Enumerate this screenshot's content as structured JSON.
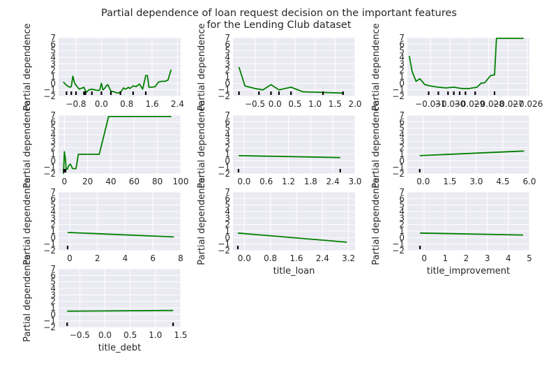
{
  "chart_data": {
    "title": [
      "Partial dependence of loan request decision on the important features",
      "for the Lending Club dataset"
    ],
    "line_color": "#008000",
    "background_color": "#eaeaf2",
    "panels": [
      {
        "type": "line",
        "xlabel": "",
        "ylabel": "Partial dependence",
        "xlim": [
          -1.35,
          2.5
        ],
        "ylim": [
          -2,
          7
        ],
        "xticks": [
          -0.8,
          0.0,
          0.8,
          1.6,
          2.4
        ],
        "xtick_labels": [
          "−0.8",
          "0.0",
          "0.8",
          "1.6",
          "2.4"
        ],
        "yticks": [
          -2,
          -1,
          0,
          1,
          2,
          3,
          4,
          5,
          6,
          7
        ],
        "ytick_labels": [
          "−2",
          "−1",
          "0",
          "1",
          "2",
          "3",
          "4",
          "5",
          "6",
          "7"
        ],
        "x": [
          -1.2,
          -1.1,
          -1.0,
          -0.95,
          -0.9,
          -0.85,
          -0.8,
          -0.7,
          -0.6,
          -0.55,
          -0.5,
          -0.45,
          -0.4,
          -0.3,
          -0.2,
          -0.1,
          -0.05,
          0.0,
          0.05,
          0.1,
          0.15,
          0.2,
          0.3,
          0.4,
          0.5,
          0.6,
          0.7,
          0.75,
          0.8,
          0.85,
          0.9,
          1.0,
          1.1,
          1.2,
          1.3,
          1.4,
          1.45,
          1.5,
          1.55,
          1.6,
          1.7,
          1.8,
          1.9,
          2.0,
          2.1,
          2.2
        ],
        "y": [
          0.2,
          -0.3,
          -0.6,
          -0.5,
          1.1,
          0.1,
          -0.3,
          -0.9,
          -0.7,
          -0.6,
          -1.2,
          -1.3,
          -1.0,
          -0.9,
          -1.0,
          -1.1,
          -1.0,
          0.0,
          -1.0,
          -0.8,
          -0.4,
          -0.2,
          -1.2,
          -1.3,
          -1.5,
          -1.4,
          -0.7,
          -0.9,
          -0.8,
          -0.6,
          -0.8,
          -0.4,
          -0.5,
          -0.1,
          -0.9,
          1.2,
          1.2,
          -0.6,
          -0.6,
          -0.6,
          -0.5,
          0.2,
          0.3,
          0.3,
          0.5,
          2.1
        ],
        "rug": [
          -1.1,
          -0.95,
          -0.8,
          -0.55,
          -0.5,
          -0.3,
          0.0,
          0.3,
          0.6,
          1.0,
          1.4
        ]
      },
      {
        "type": "line",
        "xlabel": "",
        "ylabel": "Partial dependence",
        "xlim": [
          -1.05,
          2.0
        ],
        "ylim": [
          -2,
          7
        ],
        "xticks": [
          -0.5,
          0.0,
          0.5,
          1.0,
          1.5,
          2.0
        ],
        "xtick_labels": [
          "−0.5",
          "0.0",
          "0.5",
          "1.0",
          "1.5",
          "2.0"
        ],
        "yticks": [
          -2,
          -1,
          0,
          1,
          2,
          3,
          4,
          5,
          6,
          7
        ],
        "ytick_labels": [
          "−2",
          "−1",
          "0",
          "1",
          "2",
          "3",
          "4",
          "5",
          "6",
          "7"
        ],
        "x": [
          -0.9,
          -0.75,
          -0.5,
          -0.3,
          -0.1,
          0.1,
          0.4,
          0.7,
          1.2,
          1.7
        ],
        "y": [
          2.5,
          -0.4,
          -0.8,
          -1.0,
          -0.2,
          -1.0,
          -0.6,
          -1.3,
          -1.4,
          -1.5
        ],
        "rug": [
          -0.9,
          -0.4,
          -0.1,
          0.1,
          0.4,
          1.2,
          1.7
        ]
      },
      {
        "type": "line",
        "xlabel": "",
        "ylabel": "Partial dependence",
        "xlim": [
          -0.0322,
          -0.0259
        ],
        "ylim": [
          -2,
          7
        ],
        "xticks": [
          -0.031,
          -0.03,
          -0.029,
          -0.028,
          -0.027,
          -0.026
        ],
        "xtick_labels": [
          "−0.031",
          "−0.030",
          "−0.029",
          "−0.028",
          "−0.027",
          "−0.026"
        ],
        "yticks": [
          -2,
          -1,
          0,
          1,
          2,
          3,
          4,
          5,
          6,
          7
        ],
        "ytick_labels": [
          "−2",
          "−1",
          "0",
          "1",
          "2",
          "3",
          "4",
          "5",
          "6",
          "7"
        ],
        "x": [
          -0.0321,
          -0.03195,
          -0.03175,
          -0.03155,
          -0.0313,
          -0.031,
          -0.0306,
          -0.0302,
          -0.0298,
          -0.0294,
          -0.029,
          -0.0286,
          -0.0284,
          -0.0282,
          -0.0279,
          -0.0277,
          -0.0276,
          -0.0274,
          -0.027,
          -0.0266,
          -0.0262
        ],
        "y": [
          4.2,
          1.8,
          0.3,
          0.7,
          -0.2,
          -0.4,
          -0.6,
          -0.7,
          -0.6,
          -0.8,
          -0.8,
          -0.6,
          0.0,
          0.1,
          1.2,
          1.3,
          6.9,
          6.9,
          6.9,
          6.9,
          6.9
        ],
        "rug": [
          -0.0311,
          -0.0306,
          -0.0301,
          -0.0298,
          -0.0295,
          -0.0292,
          -0.0287,
          -0.0277
        ]
      },
      {
        "type": "line",
        "xlabel": "",
        "ylabel": "Partial dependence",
        "xlim": [
          -5,
          100
        ],
        "ylim": [
          -2,
          7
        ],
        "xticks": [
          0,
          20,
          40,
          60,
          80,
          100
        ],
        "xtick_labels": [
          "0",
          "20",
          "40",
          "60",
          "80",
          "100"
        ],
        "yticks": [
          -2,
          -1,
          0,
          1,
          2,
          3,
          4,
          5,
          6,
          7
        ],
        "ytick_labels": [
          "−2",
          "−1",
          "0",
          "1",
          "2",
          "3",
          "4",
          "5",
          "6",
          "7"
        ],
        "x": [
          -0.8,
          -0.5,
          0.0,
          0.8,
          1.5,
          2.5,
          3.5,
          5.0,
          6.0,
          7.0,
          8.0,
          10.0,
          12.0,
          30.0,
          38.0,
          92.0
        ],
        "y": [
          -2.0,
          -0.7,
          1.4,
          0.4,
          -1.2,
          -1.3,
          -0.8,
          -0.5,
          -0.8,
          -1.2,
          -1.2,
          -1.2,
          1.0,
          1.0,
          6.8,
          6.8
        ],
        "rug": [
          -0.5,
          0.0,
          0.5,
          1.0
        ]
      },
      {
        "type": "line",
        "xlabel": "",
        "ylabel": "Partial dependence",
        "xlim": [
          -0.3,
          3.0
        ],
        "ylim": [
          -2,
          7
        ],
        "xticks": [
          0.0,
          0.6,
          1.2,
          1.8,
          2.4,
          3.0
        ],
        "xtick_labels": [
          "0.0",
          "0.6",
          "1.2",
          "1.8",
          "2.4",
          "3.0"
        ],
        "yticks": [
          -2,
          -1,
          0,
          1,
          2,
          3,
          4,
          5,
          6,
          7
        ],
        "ytick_labels": [
          "−2",
          "−1",
          "0",
          "1",
          "2",
          "3",
          "4",
          "5",
          "6",
          "7"
        ],
        "x": [
          -0.15,
          2.6
        ],
        "y": [
          0.8,
          0.5
        ],
        "rug": [
          -0.15,
          2.6
        ]
      },
      {
        "type": "line",
        "xlabel": "",
        "ylabel": "Partial dependence",
        "xlim": [
          -0.9,
          6.0
        ],
        "ylim": [
          -2,
          7
        ],
        "xticks": [
          0.0,
          1.5,
          3.0,
          4.5,
          6.0
        ],
        "xtick_labels": [
          "0.0",
          "1.5",
          "3.0",
          "4.5",
          "6.0"
        ],
        "yticks": [
          -2,
          -1,
          0,
          1,
          2,
          3,
          4,
          5,
          6,
          7
        ],
        "ytick_labels": [
          "−2",
          "−1",
          "0",
          "1",
          "2",
          "3",
          "4",
          "5",
          "6",
          "7"
        ],
        "x": [
          -0.2,
          5.7
        ],
        "y": [
          0.8,
          1.5
        ],
        "rug": [
          -0.2
        ]
      },
      {
        "type": "line",
        "xlabel": "",
        "ylabel": "Partial dependence",
        "xlim": [
          -0.8,
          8.0
        ],
        "ylim": [
          -2,
          7
        ],
        "xticks": [
          0,
          2,
          4,
          6,
          8
        ],
        "xtick_labels": [
          "0",
          "2",
          "4",
          "6",
          "8"
        ],
        "yticks": [
          -2,
          -1,
          0,
          1,
          2,
          3,
          4,
          5,
          6,
          7
        ],
        "ytick_labels": [
          "−2",
          "−1",
          "0",
          "1",
          "2",
          "3",
          "4",
          "5",
          "6",
          "7"
        ],
        "x": [
          -0.15,
          7.5
        ],
        "y": [
          0.8,
          0.1
        ],
        "rug": [
          -0.15
        ]
      },
      {
        "type": "line",
        "xlabel": "title_loan",
        "ylabel": "Partial dependence",
        "xlim": [
          -0.35,
          3.4
        ],
        "ylim": [
          -2,
          7
        ],
        "xticks": [
          0.0,
          0.8,
          1.6,
          2.4,
          3.2
        ],
        "xtick_labels": [
          "0.0",
          "0.8",
          "1.6",
          "2.4",
          "3.2"
        ],
        "yticks": [
          -2,
          -1,
          0,
          1,
          2,
          3,
          4,
          5,
          6,
          7
        ],
        "ytick_labels": [
          "−2",
          "−1",
          "0",
          "1",
          "2",
          "3",
          "4",
          "5",
          "6",
          "7"
        ],
        "x": [
          -0.2,
          3.15
        ],
        "y": [
          0.7,
          -0.7
        ],
        "rug": [
          -0.2
        ]
      },
      {
        "type": "line",
        "xlabel": "title_improvement",
        "ylabel": "Partial dependence",
        "xlim": [
          -0.8,
          5.0
        ],
        "ylim": [
          -2,
          7
        ],
        "xticks": [
          0,
          1,
          2,
          3,
          4,
          5
        ],
        "xtick_labels": [
          "0",
          "1",
          "2",
          "3",
          "4",
          "5"
        ],
        "yticks": [
          -2,
          -1,
          0,
          1,
          2,
          3,
          4,
          5,
          6,
          7
        ],
        "ytick_labels": [
          "−2",
          "−1",
          "0",
          "1",
          "2",
          "3",
          "4",
          "5",
          "6",
          "7"
        ],
        "x": [
          -0.2,
          4.7
        ],
        "y": [
          0.7,
          0.4
        ],
        "rug": [
          -0.2
        ]
      },
      {
        "type": "line",
        "xlabel": "title_debt",
        "ylabel": "Partial dependence",
        "xlim": [
          -0.92,
          1.5
        ],
        "ylim": [
          -2,
          7
        ],
        "xticks": [
          -0.5,
          0.0,
          0.5,
          1.0,
          1.5
        ],
        "xtick_labels": [
          "−0.5",
          "0.0",
          "0.5",
          "1.0",
          "1.5"
        ],
        "yticks": [
          -2,
          -1,
          0,
          1,
          2,
          3,
          4,
          5,
          6,
          7
        ],
        "ytick_labels": [
          "−2",
          "−1",
          "0",
          "1",
          "2",
          "3",
          "4",
          "5",
          "6",
          "7"
        ],
        "x": [
          -0.75,
          1.35
        ],
        "y": [
          0.5,
          0.6
        ],
        "rug": [
          -0.75,
          1.35
        ]
      }
    ]
  }
}
